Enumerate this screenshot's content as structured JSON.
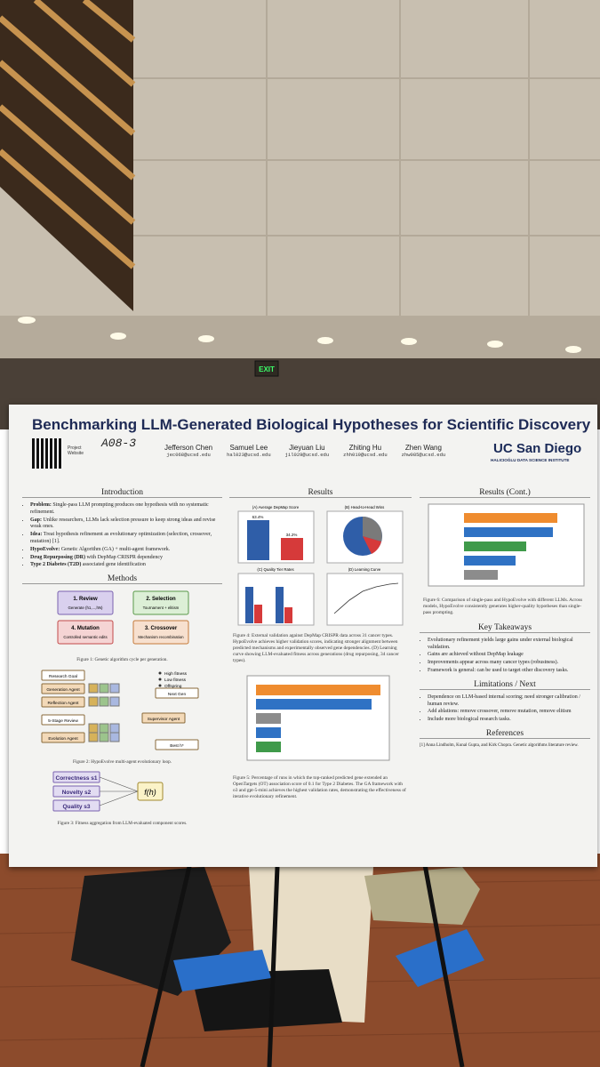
{
  "scene": {
    "exit_sign": "EXIT"
  },
  "poster": {
    "booth": "A08-3",
    "title": "Benchmarking LLM-Generated Biological Hypotheses for Scientific Discovery",
    "qr_label": "Project Website",
    "authors": [
      {
        "name": "Jefferson Chen",
        "email": "jec068@ucsd.edu"
      },
      {
        "name": "Samuel Lee",
        "email": "hal023@ucsd.edu"
      },
      {
        "name": "Jieyuan Liu",
        "email": "jil029@ucsd.edu"
      },
      {
        "name": "Zhiting Hu",
        "email": "zhh019@ucsd.edu"
      },
      {
        "name": "Zhen Wang",
        "email": "zhw085@ucsd.edu"
      }
    ],
    "logo": "UC San Diego",
    "institute": "HALICIOĞLU DATA SCIENCE INSTITUTE",
    "introduction": {
      "heading": "Introduction",
      "bullets": [
        {
          "lead": "Problem:",
          "text": "Single-pass LLM prompting produces one hypothesis with no systematic refinement."
        },
        {
          "lead": "Gap:",
          "text": "Unlike researchers, LLMs lack selection pressure to keep strong ideas and revise weak ones."
        },
        {
          "lead": "Idea:",
          "text": "Treat hypothesis refinement as evolutionary optimization (selection, crossover, mutation) [1]."
        },
        {
          "lead": "HypoEvolve:",
          "text": "Genetic Algorithm (GA) + multi-agent framework."
        },
        {
          "lead": "Drug Repurposing (DR)",
          "text": "with DepMap CRISPR dependency"
        },
        {
          "lead": "Type 2 Diabetes (T2D)",
          "text": "associated gene identification"
        }
      ]
    },
    "methods": {
      "heading": "Methods",
      "steps": [
        {
          "title": "1. Review",
          "sub": "Generate (h1,...,hN)"
        },
        {
          "title": "2. Selection",
          "sub": "Tournament + elitism"
        },
        {
          "title": "3. Crossover",
          "sub": "Mechanism recombination"
        },
        {
          "title": "4. Mutation",
          "sub": "Controlled semantic edits"
        }
      ],
      "fig1": "Figure 1: Genetic algorithm cycle per generation.",
      "agents": [
        "Research Goal",
        "Generation Agent",
        "Reflection Agent",
        "5-Stage Review",
        "Evolution Agent",
        "Supervisor Agent",
        "Best h*",
        "Next Gen"
      ],
      "legend": [
        "High fitness",
        "Low fitness",
        "Offspring"
      ],
      "fig2": "Figure 2: HypoEvolve multi-agent evolutionary loop.",
      "scores": [
        "Correctness s1",
        "Novelty s2",
        "Quality s3"
      ],
      "fitness": "f(h)",
      "fig3": "Figure 3: Fitness aggregation from LLM-evaluated component scores."
    },
    "results": {
      "heading": "Results",
      "panels": [
        "(A) Average DepMap Score",
        "(B) Head-to-Head Wins",
        "(C) Quality Tier Rates",
        "(D) Learning Curve"
      ],
      "bar_labels": [
        "63.4%",
        "34.2%"
      ],
      "fig4": "Figure 4: External validation against DepMap CRISPR data across 31 cancer types. HypoEvolve achieves higher validation scores, indicating stronger alignment between predicted mechanisms and experimentally observed gene dependencies. (D) Learning curve showing LLM-evaluated fitness across generations (drug repurposing, 34 cancer types).",
      "fig5": "Figure 5: Percentage of runs in which the top-ranked predicted gene extended an OpenTargets (OT) association score of 0.1 for Type 2 Diabetes. The GA framework with o3 and gpt-5-mini achieves the highest validation rates, demonstrating the effectiveness of iterative evolutionary refinement."
    },
    "results_cont": {
      "heading": "Results (Cont.)",
      "fig6": "Figure 6: Comparison of single-pass and HypoEvolve with different LLMs. Across models, HypoEvolve consistently generates higher-quality hypotheses than single-pass prompting."
    },
    "takeaways": {
      "heading": "Key Takeaways",
      "bullets": [
        "Evolutionary refinement yields large gains under external biological validation.",
        "Gains are achieved without DepMap leakage",
        "Improvements appear across many cancer types (robustness).",
        "Framework is general: can be used to target other discovery tasks."
      ]
    },
    "limitations": {
      "heading": "Limitations / Next",
      "bullets": [
        "Dependence on LLM-based internal scoring; need stronger calibration / human review.",
        "Add ablations: remove crossover, remove mutation, remove elitism",
        "Include more biological research tasks."
      ]
    },
    "references": {
      "heading": "References",
      "items": [
        "[1] Anna Lindholm, Kunal Gupta, and Kirk Chopra. Genetic algorithms literature review."
      ]
    }
  }
}
